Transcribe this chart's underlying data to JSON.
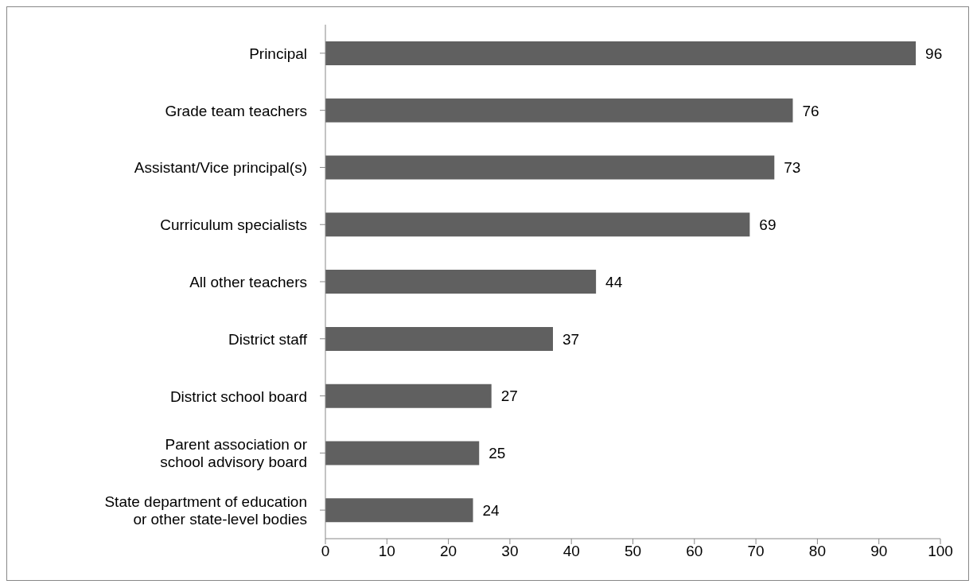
{
  "chart_data": {
    "type": "bar",
    "orientation": "horizontal",
    "categories": [
      "Principal",
      "Grade team teachers",
      "Assistant/Vice principal(s)",
      "Curriculum specialists",
      "All other teachers",
      "District staff",
      "District school board",
      "Parent association or school advisory board",
      "State department of education or other state-level bodies"
    ],
    "values": [
      96,
      76,
      73,
      69,
      44,
      37,
      27,
      25,
      24
    ],
    "color": "#606060",
    "xlim": [
      0,
      100
    ],
    "xticks": [
      0,
      10,
      20,
      30,
      40,
      50,
      60,
      70,
      80,
      90,
      100
    ],
    "grid": false,
    "legend": false,
    "data_labels": true
  }
}
